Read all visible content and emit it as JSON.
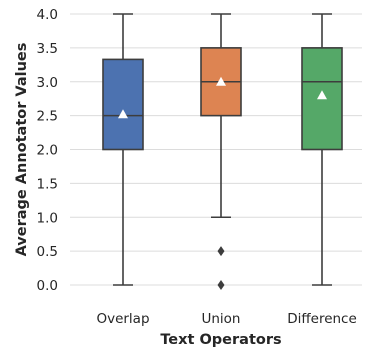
{
  "chart_data": {
    "type": "box",
    "title": "",
    "xlabel": "Text Operators",
    "ylabel": "Average Annotator Values",
    "ylim": [
      -0.2,
      4.0
    ],
    "yticks": [
      "0.0",
      "0.5",
      "1.0",
      "1.5",
      "2.0",
      "2.5",
      "3.0",
      "3.5",
      "4.0"
    ],
    "grid": true,
    "categories": [
      "Overlap",
      "Union",
      "Difference"
    ],
    "series": [
      {
        "category": "Overlap",
        "color": "#4c72b0",
        "whisker_low": 0.0,
        "q1": 2.0,
        "median": 2.5,
        "q3": 3.33,
        "whisker_high": 4.0,
        "mean": 2.52,
        "outliers": []
      },
      {
        "category": "Union",
        "color": "#dd8452",
        "whisker_low": 1.0,
        "q1": 2.5,
        "median": 3.0,
        "q3": 3.5,
        "whisker_high": 4.0,
        "mean": 3.0,
        "outliers": [
          0.5,
          0.0
        ]
      },
      {
        "category": "Difference",
        "color": "#55a868",
        "whisker_low": 0.0,
        "q1": 2.0,
        "median": 3.0,
        "q3": 3.5,
        "whisker_high": 4.0,
        "mean": 2.8,
        "outliers": []
      }
    ],
    "styles": {
      "grid_color": "#dcdcdc",
      "line_color": "#3d3d3d",
      "mean_marker_color": "#ffffff",
      "outlier_color": "#3d3d3d"
    }
  }
}
